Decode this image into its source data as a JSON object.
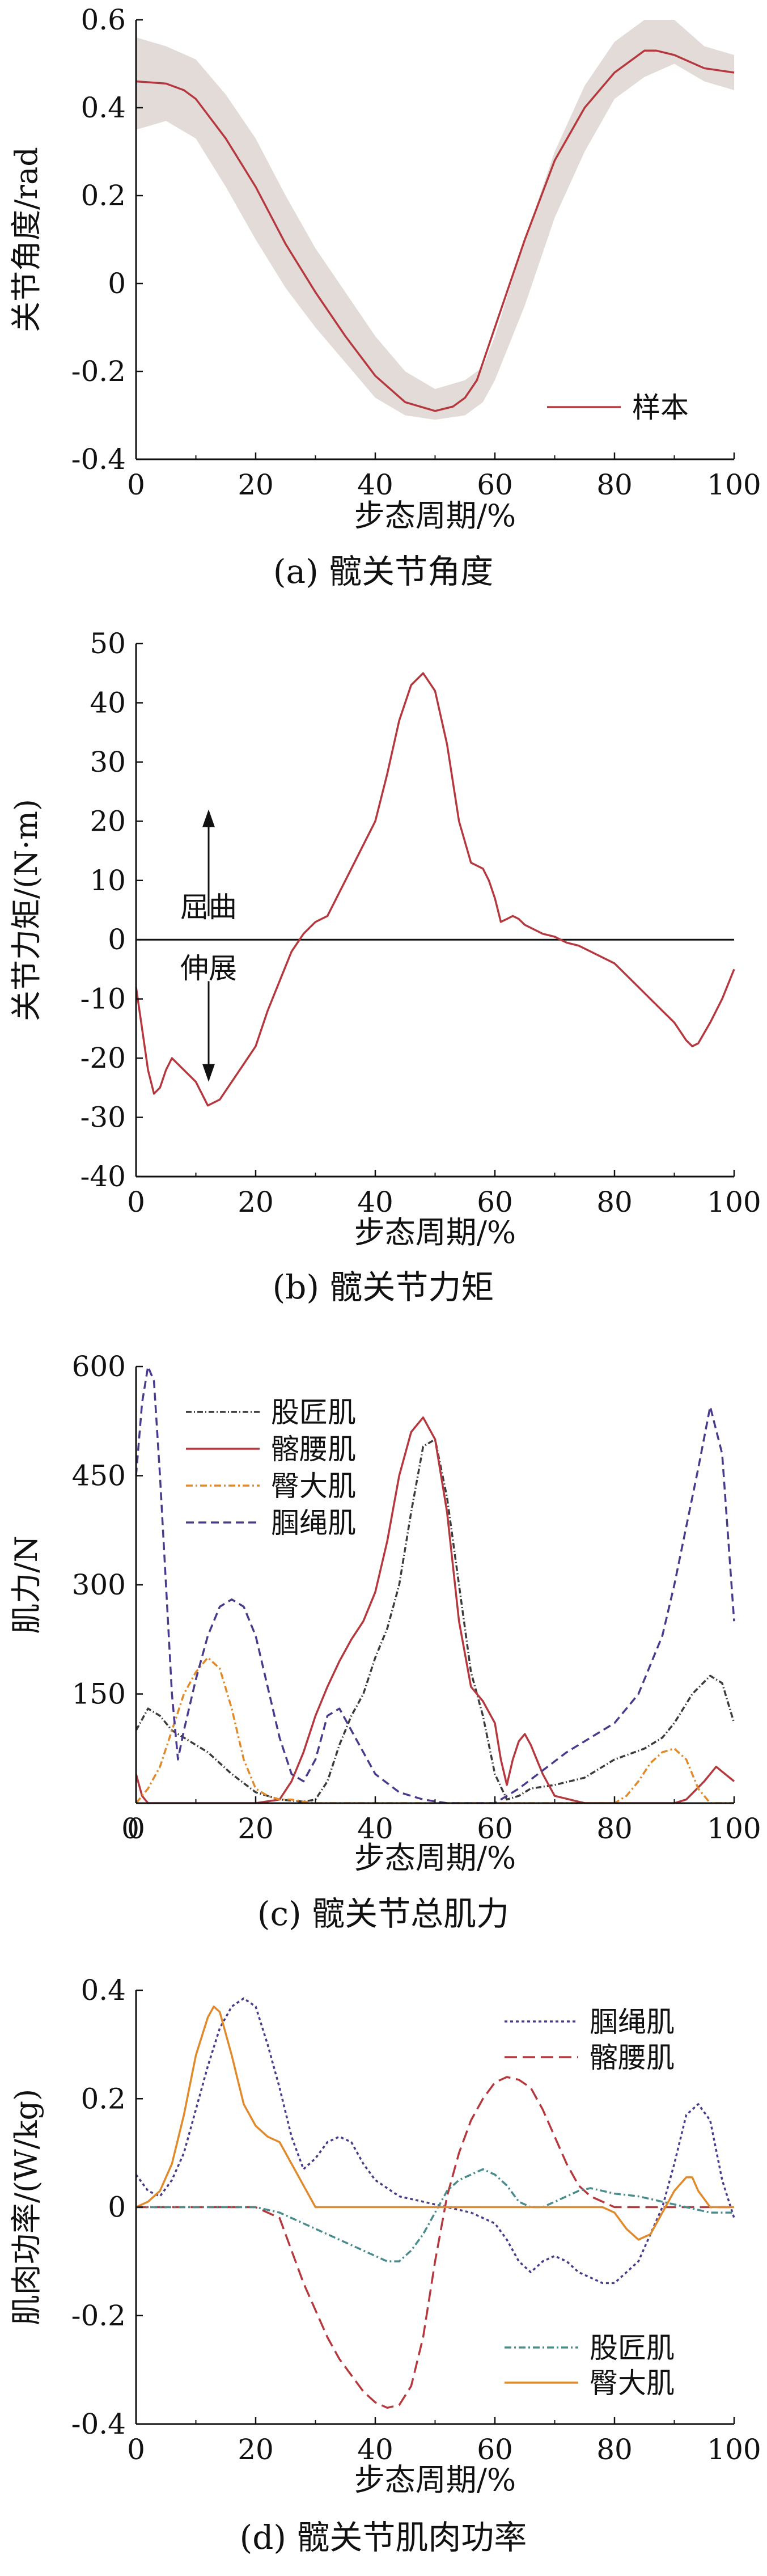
{
  "chart_data": [
    {
      "type": "line",
      "caption": "(a) 髋关节角度",
      "xlabel": "步态周期/%",
      "ylabel": "关节角度/rad",
      "xlim": [
        0,
        100
      ],
      "ylim": [
        -0.4,
        0.6
      ],
      "xticks": [
        0,
        20,
        40,
        60,
        80,
        100
      ],
      "yticks": [
        -0.4,
        -0.2,
        0,
        0.2,
        0.4,
        0.6
      ],
      "legend": {
        "position": "bottom-right",
        "entries": [
          "样本"
        ]
      },
      "band": {
        "color": "#e3dbd8",
        "x": [
          0,
          5,
          10,
          15,
          20,
          25,
          30,
          35,
          40,
          45,
          50,
          55,
          58,
          60,
          65,
          70,
          75,
          80,
          85,
          90,
          95,
          100
        ],
        "upper": [
          0.56,
          0.54,
          0.51,
          0.43,
          0.33,
          0.2,
          0.08,
          -0.02,
          -0.12,
          -0.2,
          -0.24,
          -0.22,
          -0.19,
          -0.12,
          0.1,
          0.3,
          0.45,
          0.55,
          0.6,
          0.6,
          0.54,
          0.52
        ],
        "lower": [
          0.35,
          0.37,
          0.33,
          0.22,
          0.1,
          -0.01,
          -0.1,
          -0.18,
          -0.26,
          -0.3,
          -0.31,
          -0.3,
          -0.27,
          -0.22,
          -0.05,
          0.15,
          0.3,
          0.42,
          0.47,
          0.5,
          0.46,
          0.44
        ]
      },
      "series": [
        {
          "name": "样本",
          "color": "#b5383f",
          "dash": "",
          "x": [
            0,
            5,
            8,
            10,
            15,
            20,
            25,
            30,
            35,
            40,
            45,
            50,
            53,
            55,
            57,
            60,
            65,
            70,
            75,
            80,
            85,
            87,
            90,
            95,
            100
          ],
          "y": [
            0.46,
            0.455,
            0.44,
            0.42,
            0.33,
            0.22,
            0.09,
            -0.02,
            -0.12,
            -0.21,
            -0.27,
            -0.29,
            -0.28,
            -0.26,
            -0.22,
            -0.1,
            0.1,
            0.28,
            0.4,
            0.48,
            0.53,
            0.53,
            0.52,
            0.49,
            0.48
          ]
        }
      ]
    },
    {
      "type": "line",
      "caption": "(b) 髋关节力矩",
      "xlabel": "步态周期/%",
      "ylabel": "关节力矩/(N·m)",
      "xlim": [
        0,
        100
      ],
      "ylim": [
        -40,
        50
      ],
      "xticks": [
        0,
        20,
        40,
        60,
        80,
        100
      ],
      "yticks": [
        -40,
        -30,
        -20,
        -10,
        0,
        10,
        20,
        30,
        40,
        50
      ],
      "zero_line": true,
      "annotations": [
        {
          "text": "屈曲",
          "direction": "up"
        },
        {
          "text": "伸展",
          "direction": "down"
        }
      ],
      "series": [
        {
          "name": "",
          "color": "#b5383f",
          "dash": "",
          "x": [
            0,
            1,
            2,
            3,
            4,
            5,
            6,
            7,
            8,
            10,
            12,
            14,
            16,
            18,
            20,
            22,
            24,
            26,
            28,
            30,
            32,
            34,
            36,
            38,
            40,
            42,
            44,
            46,
            48,
            50,
            52,
            54,
            56,
            58,
            59,
            60,
            61,
            62,
            63,
            64,
            65,
            66,
            68,
            70,
            72,
            74,
            76,
            78,
            80,
            82,
            84,
            86,
            88,
            90,
            92,
            93,
            94,
            96,
            98,
            100
          ],
          "y": [
            -8,
            -15,
            -22,
            -26,
            -25,
            -22,
            -20,
            -21,
            -22,
            -24,
            -28,
            -27,
            -24,
            -21,
            -18,
            -12,
            -7,
            -2,
            1,
            3,
            4,
            8,
            12,
            16,
            20,
            28,
            37,
            43,
            45,
            42,
            33,
            20,
            13,
            12,
            10,
            7,
            3,
            3.5,
            4,
            3.5,
            2.5,
            2,
            1,
            0.5,
            -0.5,
            -1,
            -2,
            -3,
            -4,
            -6,
            -8,
            -10,
            -12,
            -14,
            -17,
            -18,
            -17.5,
            -14,
            -10,
            -5
          ]
        }
      ]
    },
    {
      "type": "line",
      "caption": "(c) 髋关节总肌力",
      "xlabel": "步态周期/%",
      "ylabel": "肌力/N",
      "xlim": [
        0,
        100
      ],
      "ylim": [
        0,
        600
      ],
      "xticks": [
        0,
        20,
        40,
        60,
        80,
        100
      ],
      "yticks": [
        150,
        300,
        450,
        600
      ],
      "ytick_labels": [
        "150",
        "300",
        "450",
        "600"
      ],
      "legend": {
        "position": "top-left",
        "entries": [
          "股匠肌",
          "髂腰肌",
          "臀大肌",
          "腘绳肌"
        ]
      },
      "series": [
        {
          "name": "股匠肌",
          "color": "#3b3b3b",
          "dash": "10 4 2 4",
          "x": [
            0,
            2,
            4,
            6,
            8,
            12,
            16,
            20,
            24,
            28,
            30,
            32,
            34,
            36,
            38,
            40,
            42,
            44,
            46,
            48,
            50,
            52,
            54,
            56,
            58,
            60,
            62,
            64,
            66,
            70,
            75,
            80,
            85,
            88,
            90,
            93,
            96,
            98,
            100
          ],
          "y": [
            100,
            130,
            120,
            100,
            90,
            70,
            40,
            15,
            5,
            2,
            5,
            30,
            80,
            120,
            150,
            200,
            240,
            300,
            400,
            490,
            500,
            420,
            300,
            180,
            120,
            40,
            5,
            10,
            20,
            25,
            35,
            60,
            75,
            90,
            110,
            150,
            175,
            165,
            110
          ]
        },
        {
          "name": "髂腰肌",
          "color": "#b5383f",
          "dash": "",
          "x": [
            0,
            1,
            2,
            3,
            5,
            10,
            15,
            20,
            24,
            26,
            28,
            30,
            32,
            34,
            36,
            38,
            40,
            42,
            44,
            46,
            48,
            50,
            52,
            54,
            56,
            58,
            60,
            61,
            62,
            63,
            64,
            65,
            66,
            68,
            70,
            75,
            80,
            85,
            90,
            92,
            95,
            97,
            100
          ],
          "y": [
            40,
            10,
            0,
            0,
            0,
            0,
            0,
            0,
            5,
            30,
            70,
            120,
            160,
            195,
            225,
            250,
            290,
            360,
            450,
            510,
            530,
            500,
            400,
            250,
            160,
            140,
            110,
            60,
            25,
            60,
            85,
            95,
            80,
            40,
            10,
            0,
            0,
            0,
            0,
            5,
            30,
            50,
            30
          ]
        },
        {
          "name": "臀大肌",
          "color": "#e08a2b",
          "dash": "12 5 3 5",
          "x": [
            0,
            2,
            4,
            6,
            8,
            10,
            12,
            14,
            16,
            18,
            20,
            22,
            24,
            26,
            28,
            30,
            35,
            40,
            50,
            60,
            70,
            75,
            80,
            82,
            84,
            86,
            88,
            90,
            92,
            94,
            96,
            100
          ],
          "y": [
            0,
            20,
            50,
            100,
            150,
            180,
            200,
            185,
            130,
            60,
            20,
            10,
            5,
            5,
            2,
            0,
            0,
            0,
            0,
            0,
            0,
            0,
            0,
            10,
            30,
            55,
            70,
            75,
            60,
            20,
            0,
            0
          ]
        },
        {
          "name": "腘绳肌",
          "color": "#4b3a8c",
          "dash": "14 8",
          "x": [
            0,
            1,
            2,
            3,
            4,
            5,
            6,
            7,
            8,
            10,
            12,
            14,
            16,
            18,
            20,
            22,
            24,
            26,
            28,
            30,
            32,
            34,
            36,
            38,
            40,
            44,
            48,
            52,
            56,
            60,
            64,
            68,
            72,
            76,
            80,
            84,
            88,
            90,
            92,
            94,
            96,
            98,
            100
          ],
          "y": [
            450,
            550,
            600,
            580,
            450,
            300,
            150,
            60,
            100,
            170,
            230,
            270,
            280,
            270,
            230,
            160,
            90,
            40,
            30,
            60,
            120,
            130,
            100,
            70,
            40,
            15,
            5,
            0,
            0,
            0,
            20,
            45,
            70,
            90,
            110,
            150,
            230,
            300,
            380,
            460,
            545,
            480,
            250
          ]
        }
      ]
    },
    {
      "type": "line",
      "caption": "(d) 髋关节肌肉功率",
      "xlabel": "步态周期/%",
      "ylabel": "肌肉功率/(W/kg)",
      "xlim": [
        0,
        100
      ],
      "ylim": [
        -0.4,
        0.4
      ],
      "xticks": [
        0,
        20,
        40,
        60,
        80,
        100
      ],
      "yticks": [
        -0.4,
        -0.2,
        0,
        0.2,
        0.4
      ],
      "legend": {
        "position": "split",
        "entries": [
          "腘绳肌",
          "髂腰肌",
          "股匠肌",
          "臀大肌"
        ]
      },
      "series": [
        {
          "name": "腘绳肌",
          "color": "#4b3a8c",
          "dash": "5 5",
          "x": [
            0,
            2,
            4,
            6,
            8,
            10,
            12,
            14,
            16,
            18,
            20,
            22,
            24,
            26,
            28,
            30,
            32,
            34,
            36,
            38,
            40,
            44,
            48,
            52,
            56,
            58,
            60,
            62,
            64,
            66,
            68,
            70,
            72,
            74,
            76,
            78,
            80,
            84,
            88,
            90,
            92,
            94,
            96,
            98,
            100
          ],
          "y": [
            0.06,
            0.03,
            0.02,
            0.05,
            0.1,
            0.18,
            0.26,
            0.33,
            0.37,
            0.385,
            0.37,
            0.3,
            0.22,
            0.13,
            0.07,
            0.09,
            0.12,
            0.13,
            0.12,
            0.08,
            0.05,
            0.02,
            0.01,
            0.0,
            -0.01,
            -0.02,
            -0.03,
            -0.06,
            -0.1,
            -0.12,
            -0.1,
            -0.09,
            -0.1,
            -0.12,
            -0.13,
            -0.14,
            -0.14,
            -0.1,
            0.0,
            0.08,
            0.17,
            0.19,
            0.16,
            0.05,
            -0.02
          ]
        },
        {
          "name": "髂腰肌",
          "color": "#b5383f",
          "dash": "22 10",
          "x": [
            0,
            5,
            10,
            15,
            20,
            24,
            26,
            28,
            30,
            32,
            34,
            36,
            38,
            40,
            42,
            44,
            46,
            48,
            50,
            52,
            54,
            56,
            58,
            60,
            62,
            64,
            66,
            68,
            70,
            72,
            74,
            76,
            78,
            80,
            85,
            90,
            95,
            100
          ],
          "y": [
            0.0,
            0.0,
            0.0,
            0.0,
            0.0,
            -0.02,
            -0.08,
            -0.14,
            -0.19,
            -0.24,
            -0.28,
            -0.31,
            -0.34,
            -0.36,
            -0.37,
            -0.365,
            -0.33,
            -0.24,
            -0.1,
            0.02,
            0.1,
            0.16,
            0.2,
            0.23,
            0.24,
            0.235,
            0.22,
            0.18,
            0.13,
            0.08,
            0.04,
            0.02,
            0.01,
            0.0,
            0.0,
            0.0,
            0.0,
            0.0
          ]
        },
        {
          "name": "股匠肌",
          "color": "#4a8c8c",
          "dash": "12 5 3 5",
          "x": [
            0,
            5,
            10,
            15,
            20,
            24,
            28,
            32,
            36,
            40,
            42,
            44,
            46,
            48,
            50,
            52,
            54,
            56,
            58,
            60,
            62,
            64,
            66,
            68,
            70,
            72,
            74,
            76,
            78,
            80,
            84,
            88,
            92,
            96,
            100
          ],
          "y": [
            0.0,
            0.0,
            0.0,
            0.0,
            0.0,
            -0.01,
            -0.03,
            -0.05,
            -0.07,
            -0.09,
            -0.1,
            -0.1,
            -0.08,
            -0.05,
            -0.01,
            0.03,
            0.05,
            0.06,
            0.07,
            0.06,
            0.04,
            0.01,
            0.0,
            0.0,
            0.01,
            0.02,
            0.03,
            0.035,
            0.03,
            0.025,
            0.02,
            0.01,
            0.0,
            -0.01,
            -0.01
          ]
        },
        {
          "name": "臀大肌",
          "color": "#e08a2b",
          "dash": "",
          "x": [
            0,
            2,
            4,
            6,
            8,
            10,
            12,
            13,
            14,
            16,
            18,
            20,
            22,
            24,
            26,
            28,
            30,
            34,
            40,
            50,
            60,
            70,
            78,
            80,
            82,
            84,
            86,
            88,
            90,
            92,
            93,
            94,
            96,
            100
          ],
          "y": [
            0.0,
            0.01,
            0.03,
            0.08,
            0.17,
            0.28,
            0.35,
            0.37,
            0.36,
            0.28,
            0.19,
            0.15,
            0.13,
            0.12,
            0.08,
            0.04,
            0.0,
            0.0,
            0.0,
            0.0,
            0.0,
            0.0,
            0.0,
            -0.01,
            -0.04,
            -0.06,
            -0.05,
            -0.01,
            0.03,
            0.055,
            0.055,
            0.03,
            0.0,
            0.0
          ]
        }
      ]
    }
  ]
}
